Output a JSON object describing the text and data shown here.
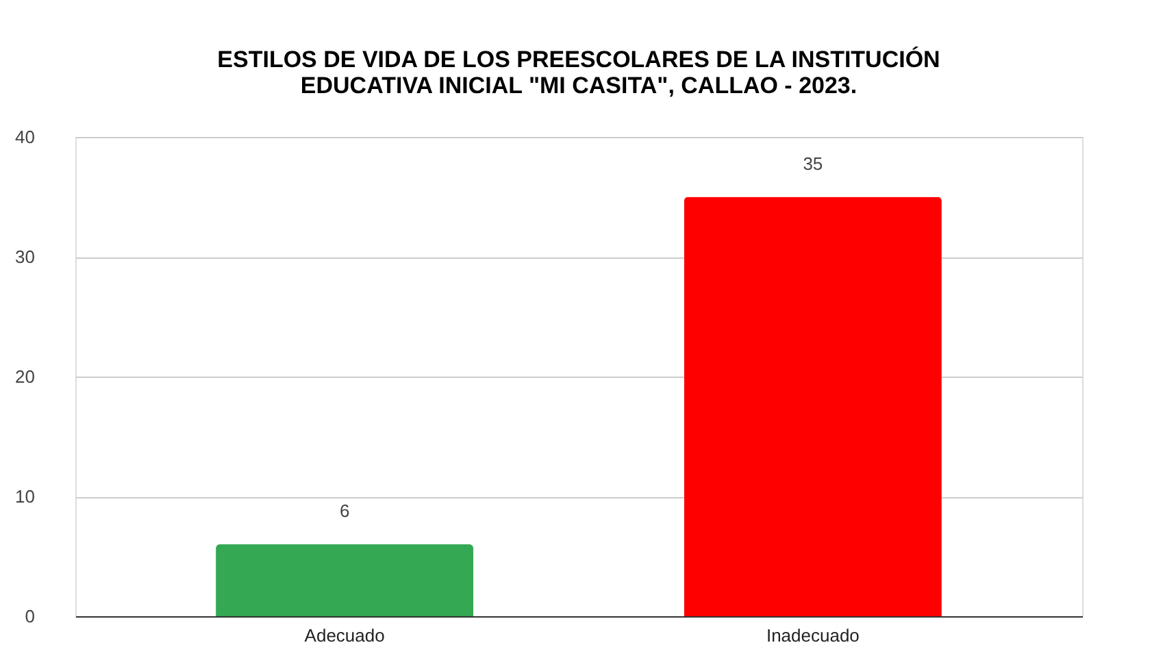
{
  "chart_data": {
    "type": "bar",
    "title": "ESTILOS DE VIDA DE LOS PREESCOLARES DE LA INSTITUCIÓN\nEDUCATIVA INICIAL \"MI CASITA\", CALLAO - 2023.",
    "categories": [
      "Adecuado",
      "Inadecuado"
    ],
    "values": [
      6,
      35
    ],
    "colors": [
      "#34a853",
      "#ff0000"
    ],
    "ylim": [
      0,
      40
    ],
    "yticks": [
      0,
      10,
      20,
      30,
      40
    ],
    "grid": "y",
    "data_labels": true
  }
}
